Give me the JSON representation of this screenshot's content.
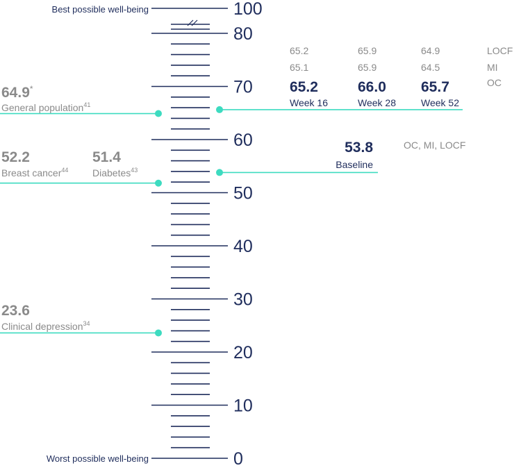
{
  "chart_data": {
    "type": "scale",
    "axis": {
      "min": 0,
      "max": 100,
      "major_ticks": [
        0,
        10,
        20,
        30,
        40,
        50,
        60,
        70,
        80,
        100
      ],
      "minor_step": 2,
      "axis_break": [
        80,
        100
      ],
      "top_label": "Best possible well-being",
      "bottom_label": "Worst possible well-being"
    },
    "references": [
      {
        "value": 64.9,
        "value_label": "64.9",
        "marker": "*",
        "name": "General population",
        "ref": "41"
      },
      {
        "value": 52.2,
        "value_label": "52.2",
        "name": "Breast cancer",
        "ref": "44"
      },
      {
        "value": 51.4,
        "value_label": "51.4",
        "name": "Diabetes",
        "ref": "43"
      },
      {
        "value": 23.6,
        "value_label": "23.6",
        "name": "Clinical depression",
        "ref": "34"
      }
    ],
    "baseline": {
      "value": 53.8,
      "value_label": "53.8",
      "label": "Baseline",
      "methods": "OC, MI, LOCF"
    },
    "followup": {
      "methods": [
        "LOCF",
        "MI",
        "OC"
      ],
      "timepoints": [
        {
          "label": "Week 16",
          "LOCF": "65.2",
          "MI": "65.1",
          "OC": "65.2"
        },
        {
          "label": "Week 28",
          "LOCF": "65.9",
          "MI": "65.9",
          "OC": "66.0"
        },
        {
          "label": "Week 52",
          "LOCF": "64.9",
          "MI": "64.5",
          "OC": "65.7"
        }
      ]
    },
    "colors": {
      "navy": "#1f2d5c",
      "teal": "#3ddbc0",
      "grey": "#8a8a8a"
    }
  }
}
